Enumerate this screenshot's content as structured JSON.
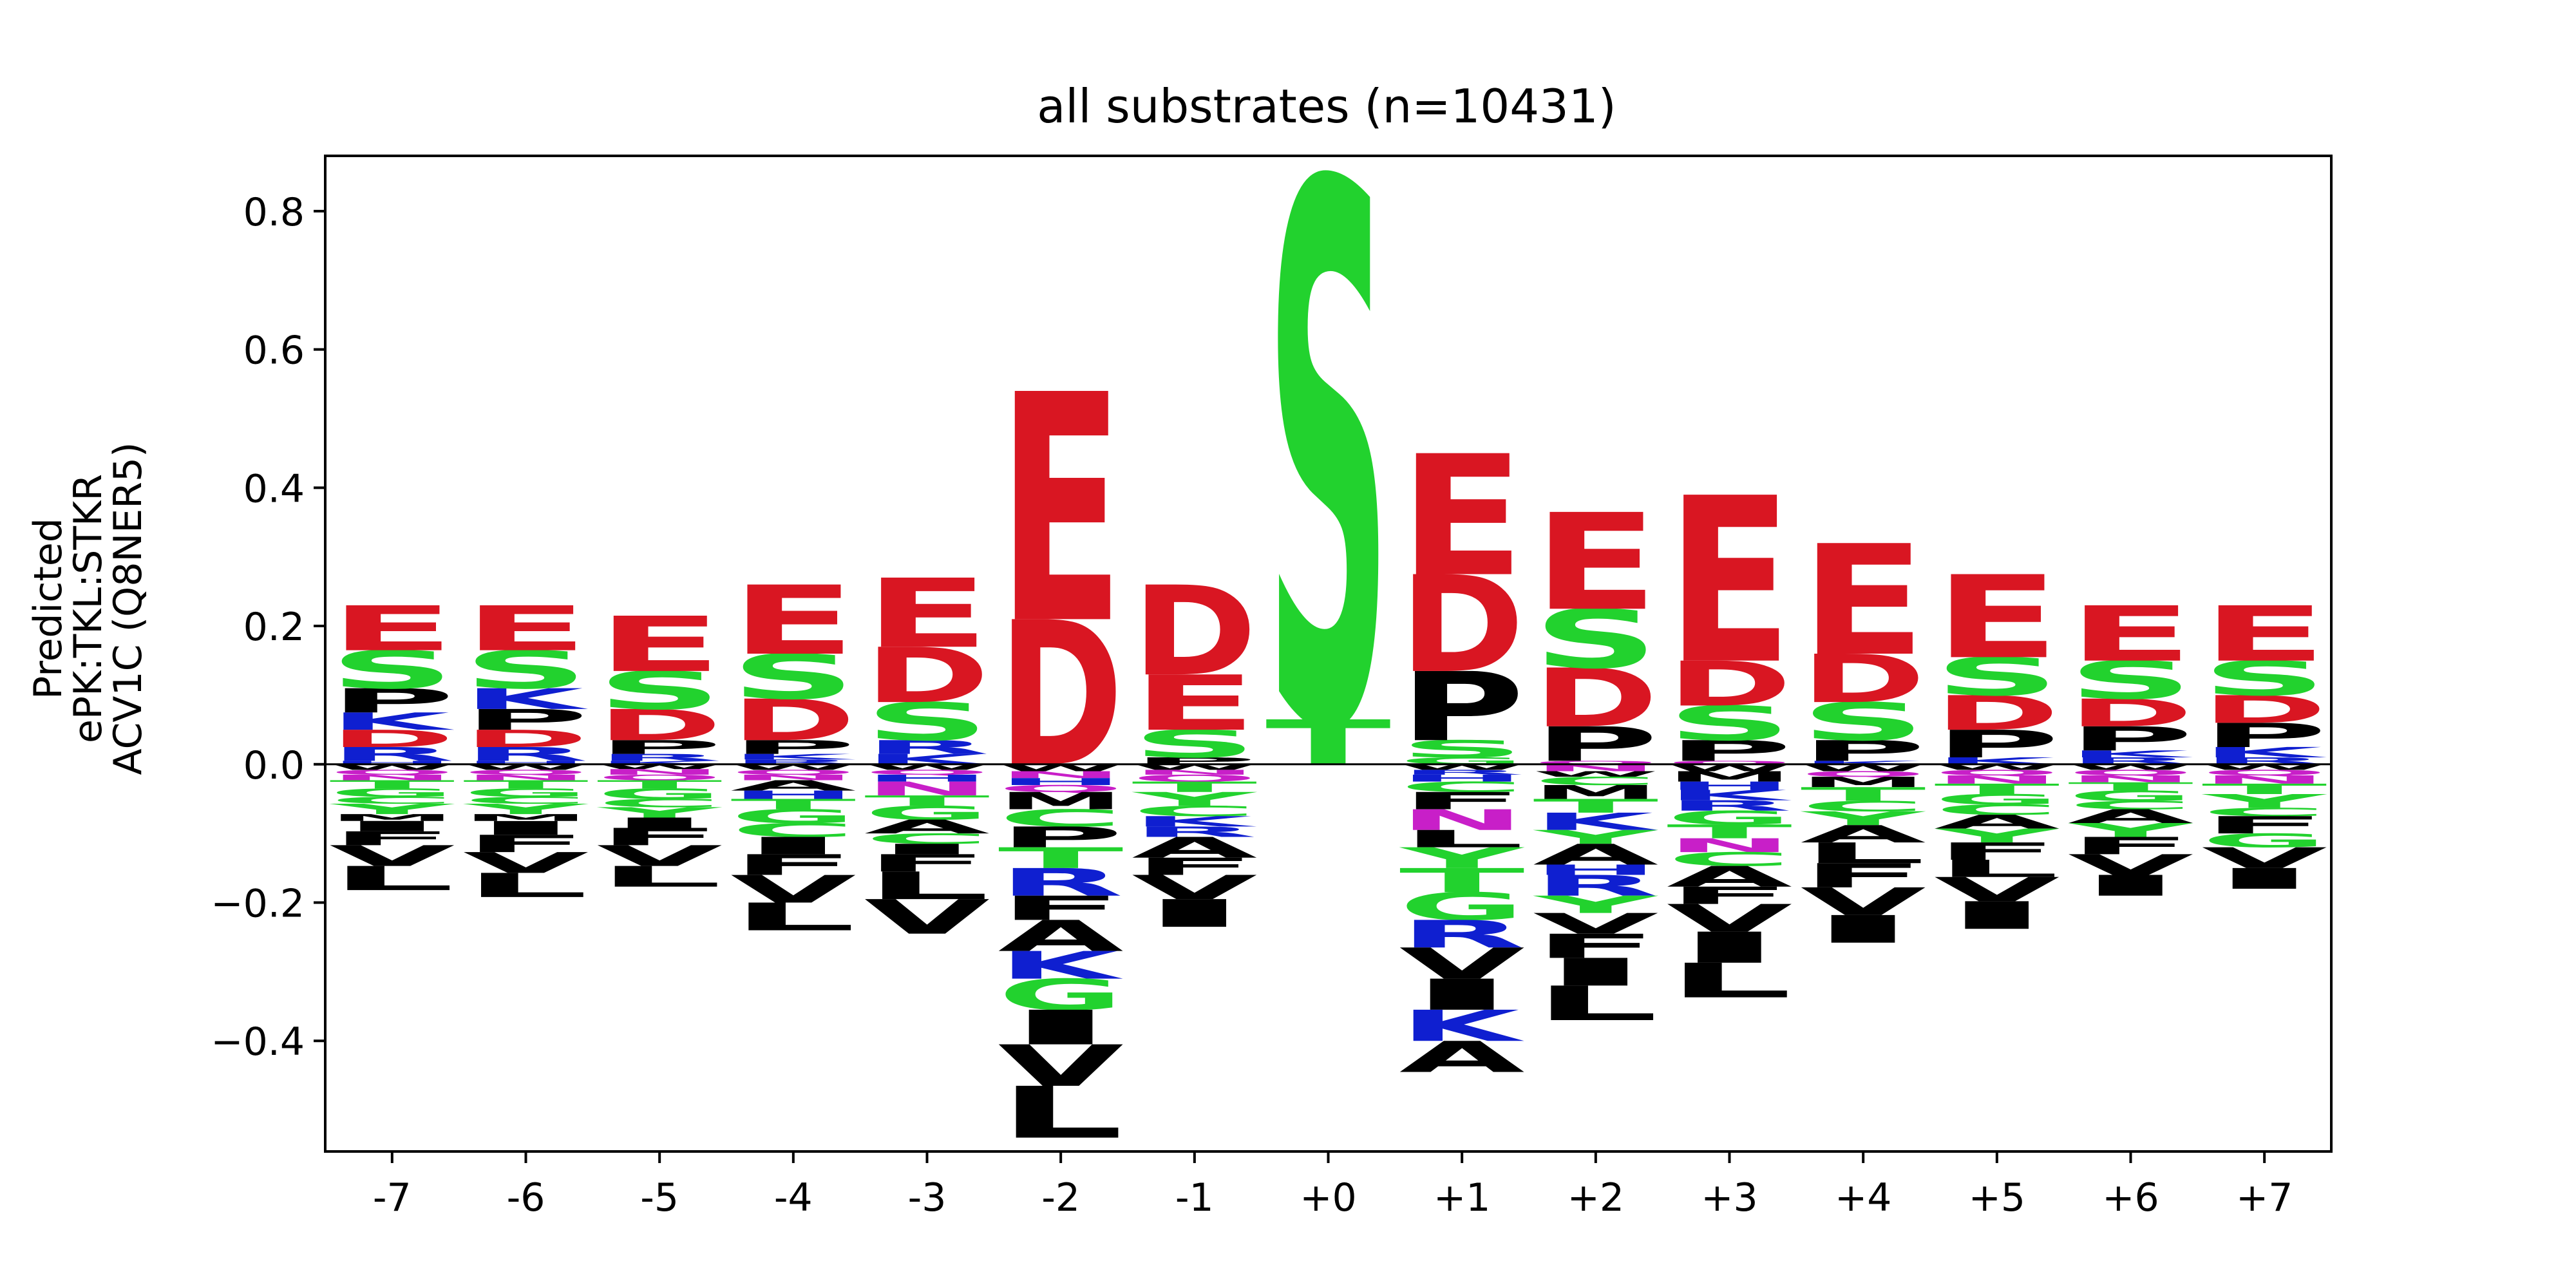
{
  "chart_data": {
    "type": "sequence-logo",
    "title": "all substrates (n=10431)",
    "ylabel_lines": [
      "Predicted",
      "ePK:TKL:STKR",
      "ACV1C (Q8NER5)"
    ],
    "xlabel": "",
    "ylim": [
      -0.56,
      0.88
    ],
    "yticks": [
      -0.4,
      -0.2,
      0.0,
      0.2,
      0.4,
      0.6,
      0.8
    ],
    "ytick_labels": [
      "−0.4",
      "−0.2",
      "0.0",
      "0.2",
      "0.4",
      "0.6",
      "0.8"
    ],
    "grid": false,
    "colors": {
      "acidic": "#d91622",
      "polar": "#22d22e",
      "basic": "#0f1fd0",
      "hydrophobic": "#000000",
      "amide": "#c81fc8"
    },
    "letter_colors": {
      "E": "#d91622",
      "D": "#d91622",
      "S": "#22d22e",
      "T": "#22d22e",
      "G": "#22d22e",
      "Y": "#22d22e",
      "C": "#22d22e",
      "K": "#0f1fd0",
      "R": "#0f1fd0",
      "H": "#0f1fd0",
      "N": "#c81fc8",
      "Q": "#c81fc8",
      "P": "#000000",
      "A": "#000000",
      "V": "#000000",
      "L": "#000000",
      "I": "#000000",
      "M": "#000000",
      "F": "#000000",
      "W": "#000000"
    },
    "positions": [
      {
        "label": "-7",
        "pos": [
          [
            "E",
            0.065
          ],
          [
            "S",
            0.055
          ],
          [
            "P",
            0.035
          ],
          [
            "K",
            0.025
          ],
          [
            "D",
            0.025
          ],
          [
            "R",
            0.02
          ],
          [
            "H",
            0.005
          ]
        ],
        "neg": [
          [
            "W",
            0.008
          ],
          [
            "Q",
            0.007
          ],
          [
            "N",
            0.008
          ],
          [
            "T",
            0.012
          ],
          [
            "G",
            0.012
          ],
          [
            "C",
            0.01
          ],
          [
            "Y",
            0.015
          ],
          [
            "M",
            0.01
          ],
          [
            "I",
            0.015
          ],
          [
            "F",
            0.02
          ],
          [
            "V",
            0.03
          ],
          [
            "L",
            0.035
          ]
        ]
      },
      {
        "label": "-6",
        "pos": [
          [
            "E",
            0.065
          ],
          [
            "S",
            0.055
          ],
          [
            "K",
            0.03
          ],
          [
            "P",
            0.03
          ],
          [
            "D",
            0.025
          ],
          [
            "R",
            0.02
          ],
          [
            "H",
            0.005
          ]
        ],
        "neg": [
          [
            "W",
            0.008
          ],
          [
            "Q",
            0.007
          ],
          [
            "N",
            0.008
          ],
          [
            "T",
            0.012
          ],
          [
            "G",
            0.012
          ],
          [
            "C",
            0.01
          ],
          [
            "Y",
            0.015
          ],
          [
            "M",
            0.01
          ],
          [
            "I",
            0.02
          ],
          [
            "F",
            0.025
          ],
          [
            "V",
            0.03
          ],
          [
            "L",
            0.035
          ]
        ]
      },
      {
        "label": "-5",
        "pos": [
          [
            "E",
            0.08
          ],
          [
            "S",
            0.055
          ],
          [
            "D",
            0.045
          ],
          [
            "P",
            0.02
          ],
          [
            "R",
            0.01
          ],
          [
            "K",
            0.005
          ]
        ],
        "neg": [
          [
            "W",
            0.007
          ],
          [
            "N",
            0.008
          ],
          [
            "Q",
            0.008
          ],
          [
            "T",
            0.012
          ],
          [
            "G",
            0.015
          ],
          [
            "C",
            0.012
          ],
          [
            "Y",
            0.015
          ],
          [
            "I",
            0.015
          ],
          [
            "F",
            0.025
          ],
          [
            "V",
            0.03
          ],
          [
            "L",
            0.03
          ]
        ]
      },
      {
        "label": "-4",
        "pos": [
          [
            "E",
            0.1
          ],
          [
            "S",
            0.065
          ],
          [
            "D",
            0.06
          ],
          [
            "P",
            0.02
          ],
          [
            "K",
            0.008
          ],
          [
            "R",
            0.007
          ]
        ],
        "neg": [
          [
            "W",
            0.008
          ],
          [
            "Q",
            0.007
          ],
          [
            "N",
            0.008
          ],
          [
            "A",
            0.015
          ],
          [
            "H",
            0.012
          ],
          [
            "T",
            0.015
          ],
          [
            "G",
            0.02
          ],
          [
            "C",
            0.02
          ],
          [
            "I",
            0.025
          ],
          [
            "F",
            0.03
          ],
          [
            "V",
            0.04
          ],
          [
            "L",
            0.04
          ]
        ]
      },
      {
        "label": "-3",
        "pos": [
          [
            "E",
            0.1
          ],
          [
            "D",
            0.08
          ],
          [
            "S",
            0.055
          ],
          [
            "R",
            0.02
          ],
          [
            "K",
            0.015
          ]
        ],
        "neg": [
          [
            "W",
            0.008
          ],
          [
            "Q",
            0.007
          ],
          [
            "H",
            0.01
          ],
          [
            "N",
            0.02
          ],
          [
            "T",
            0.015
          ],
          [
            "G",
            0.02
          ],
          [
            "A",
            0.02
          ],
          [
            "C",
            0.015
          ],
          [
            "I",
            0.015
          ],
          [
            "F",
            0.025
          ],
          [
            "L",
            0.04
          ],
          [
            "V",
            0.05
          ]
        ]
      },
      {
        "label": "-2",
        "pos": [
          [
            "E",
            0.33
          ],
          [
            "D",
            0.21
          ]
        ],
        "neg": [
          [
            "W",
            0.01
          ],
          [
            "N",
            0.01
          ],
          [
            "H",
            0.01
          ],
          [
            "Q",
            0.01
          ],
          [
            "M",
            0.025
          ],
          [
            "C",
            0.025
          ],
          [
            "P",
            0.03
          ],
          [
            "T",
            0.03
          ],
          [
            "R",
            0.04
          ],
          [
            "F",
            0.035
          ],
          [
            "A",
            0.045
          ],
          [
            "K",
            0.04
          ],
          [
            "G",
            0.045
          ],
          [
            "I",
            0.05
          ],
          [
            "V",
            0.06
          ],
          [
            "L",
            0.075
          ]
        ]
      },
      {
        "label": "-1",
        "pos": [
          [
            "D",
            0.13
          ],
          [
            "E",
            0.08
          ],
          [
            "S",
            0.04
          ],
          [
            "P",
            0.01
          ]
        ],
        "neg": [
          [
            "W",
            0.008
          ],
          [
            "N",
            0.007
          ],
          [
            "Q",
            0.01
          ],
          [
            "T",
            0.015
          ],
          [
            "Y",
            0.02
          ],
          [
            "C",
            0.015
          ],
          [
            "K",
            0.015
          ],
          [
            "R",
            0.015
          ],
          [
            "A",
            0.03
          ],
          [
            "F",
            0.025
          ],
          [
            "V",
            0.035
          ],
          [
            "I",
            0.04
          ]
        ]
      },
      {
        "label": "+0",
        "pos": [
          [
            "S",
            0.78
          ],
          [
            "T",
            0.065
          ]
        ],
        "neg": []
      },
      {
        "label": "+1",
        "pos": [
          [
            "E",
            0.175
          ],
          [
            "D",
            0.14
          ],
          [
            "P",
            0.1
          ],
          [
            "S",
            0.025
          ],
          [
            "G",
            0.01
          ]
        ],
        "neg": [
          [
            "W",
            0.008
          ],
          [
            "R",
            0.007
          ],
          [
            "H",
            0.01
          ],
          [
            "C",
            0.015
          ],
          [
            "F",
            0.025
          ],
          [
            "N",
            0.03
          ],
          [
            "L",
            0.025
          ],
          [
            "Y",
            0.03
          ],
          [
            "T",
            0.035
          ],
          [
            "G",
            0.04
          ],
          [
            "R",
            0.04
          ],
          [
            "V",
            0.045
          ],
          [
            "I",
            0.045
          ],
          [
            "K",
            0.045
          ],
          [
            "A",
            0.045
          ]
        ]
      },
      {
        "label": "+2",
        "pos": [
          [
            "E",
            0.14
          ],
          [
            "S",
            0.085
          ],
          [
            "D",
            0.085
          ],
          [
            "P",
            0.05
          ],
          [
            "Q",
            0.005
          ]
        ],
        "neg": [
          [
            "N",
            0.01
          ],
          [
            "W",
            0.008
          ],
          [
            "C",
            0.012
          ],
          [
            "M",
            0.02
          ],
          [
            "T",
            0.02
          ],
          [
            "K",
            0.025
          ],
          [
            "Y",
            0.02
          ],
          [
            "A",
            0.03
          ],
          [
            "H",
            0.015
          ],
          [
            "R",
            0.03
          ],
          [
            "Y",
            0.025
          ],
          [
            "V",
            0.03
          ],
          [
            "F",
            0.035
          ],
          [
            "I",
            0.04
          ],
          [
            "L",
            0.05
          ]
        ]
      },
      {
        "label": "+3",
        "pos": [
          [
            "E",
            0.24
          ],
          [
            "D",
            0.065
          ],
          [
            "S",
            0.05
          ],
          [
            "P",
            0.03
          ],
          [
            "Q",
            0.005
          ]
        ],
        "neg": [
          [
            "W",
            0.01
          ],
          [
            "M",
            0.015
          ],
          [
            "H",
            0.012
          ],
          [
            "K",
            0.015
          ],
          [
            "R",
            0.015
          ],
          [
            "G",
            0.02
          ],
          [
            "T",
            0.02
          ],
          [
            "N",
            0.02
          ],
          [
            "C",
            0.02
          ],
          [
            "A",
            0.03
          ],
          [
            "F",
            0.025
          ],
          [
            "V",
            0.04
          ],
          [
            "I",
            0.045
          ],
          [
            "L",
            0.05
          ]
        ]
      },
      {
        "label": "+4",
        "pos": [
          [
            "E",
            0.16
          ],
          [
            "D",
            0.07
          ],
          [
            "S",
            0.055
          ],
          [
            "P",
            0.03
          ],
          [
            "K",
            0.005
          ]
        ],
        "neg": [
          [
            "W",
            0.01
          ],
          [
            "Q",
            0.008
          ],
          [
            "M",
            0.015
          ],
          [
            "T",
            0.02
          ],
          [
            "C",
            0.015
          ],
          [
            "Y",
            0.02
          ],
          [
            "A",
            0.025
          ],
          [
            "L",
            0.03
          ],
          [
            "F",
            0.035
          ],
          [
            "V",
            0.04
          ],
          [
            "I",
            0.04
          ]
        ]
      },
      {
        "label": "+5",
        "pos": [
          [
            "E",
            0.12
          ],
          [
            "S",
            0.055
          ],
          [
            "D",
            0.05
          ],
          [
            "P",
            0.04
          ],
          [
            "K",
            0.01
          ]
        ],
        "neg": [
          [
            "W",
            0.008
          ],
          [
            "Q",
            0.008
          ],
          [
            "N",
            0.012
          ],
          [
            "T",
            0.015
          ],
          [
            "G",
            0.015
          ],
          [
            "C",
            0.015
          ],
          [
            "A",
            0.02
          ],
          [
            "Y",
            0.02
          ],
          [
            "F",
            0.025
          ],
          [
            "L",
            0.025
          ],
          [
            "V",
            0.035
          ],
          [
            "I",
            0.04
          ]
        ]
      },
      {
        "label": "+6",
        "pos": [
          [
            "E",
            0.08
          ],
          [
            "S",
            0.055
          ],
          [
            "D",
            0.04
          ],
          [
            "P",
            0.035
          ],
          [
            "K",
            0.01
          ],
          [
            "R",
            0.01
          ]
        ],
        "neg": [
          [
            "W",
            0.008
          ],
          [
            "Q",
            0.008
          ],
          [
            "N",
            0.01
          ],
          [
            "T",
            0.012
          ],
          [
            "G",
            0.015
          ],
          [
            "C",
            0.012
          ],
          [
            "A",
            0.02
          ],
          [
            "Y",
            0.02
          ],
          [
            "F",
            0.025
          ],
          [
            "V",
            0.03
          ],
          [
            "I",
            0.03
          ]
        ]
      },
      {
        "label": "+7",
        "pos": [
          [
            "E",
            0.08
          ],
          [
            "S",
            0.05
          ],
          [
            "D",
            0.04
          ],
          [
            "P",
            0.035
          ],
          [
            "K",
            0.015
          ],
          [
            "R",
            0.01
          ]
        ],
        "neg": [
          [
            "W",
            0.008
          ],
          [
            "Q",
            0.008
          ],
          [
            "N",
            0.012
          ],
          [
            "T",
            0.015
          ],
          [
            "Y",
            0.02
          ],
          [
            "C",
            0.012
          ],
          [
            "F",
            0.025
          ],
          [
            "G",
            0.02
          ],
          [
            "V",
            0.03
          ],
          [
            "I",
            0.03
          ]
        ]
      }
    ]
  }
}
